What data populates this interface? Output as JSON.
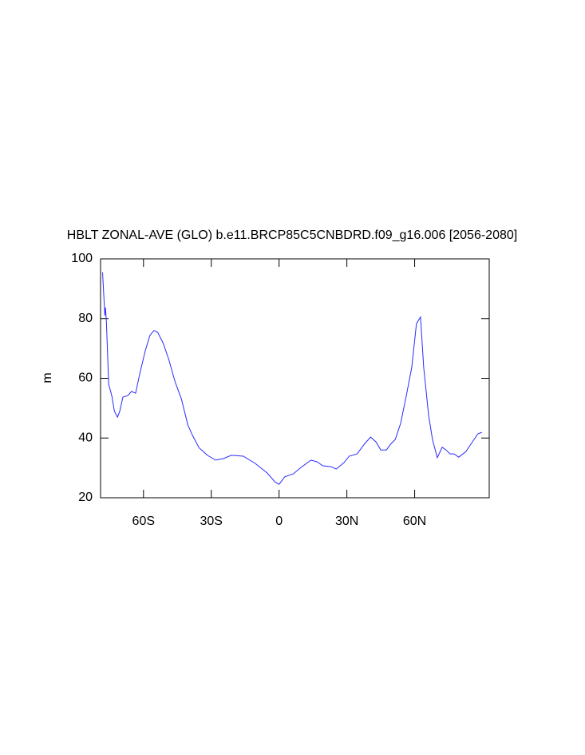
{
  "chart_data": {
    "type": "line",
    "title": "HBLT ZONAL-AVE (GLO) b.e11.BRCP85C5CNBDRD.f09_g16.006 [2056-2080]",
    "y_label": "m",
    "x": [
      -78.1,
      -77.1,
      -76.8,
      -76.4,
      -75.4,
      -74,
      -72.9,
      -71.5,
      -70.5,
      -69.1,
      -67,
      -65.3,
      -63.5,
      -61.8,
      -59.3,
      -57.2,
      -55.4,
      -53.7,
      -51.2,
      -48.8,
      -46,
      -43.2,
      -40.4,
      -38.3,
      -35.5,
      -31.7,
      -28.1,
      -24.6,
      -21.1,
      -15.8,
      -10.6,
      -5.3,
      -1.8,
      0,
      2.5,
      6.3,
      9.8,
      14.1,
      16.9,
      19.3,
      22.9,
      25.3,
      28.8,
      31,
      34.5,
      38,
      40.5,
      42.9,
      45,
      47.5,
      49.3,
      51.4,
      53.8,
      56.3,
      58.7,
      60.8,
      62.6,
      64,
      66.2,
      67.9,
      70,
      72.2,
      73.9,
      75.7,
      77.4,
      79.5,
      82.7,
      85.1,
      88,
      89.7
    ],
    "series": [
      {
        "name": "HBLT",
        "color": "#2a2aff",
        "values": [
          95.5,
          81,
          83.7,
          78.3,
          58,
          54,
          49,
          47,
          49,
          53.7,
          54.2,
          55.6,
          55,
          61,
          69,
          74.3,
          76,
          75.4,
          71.6,
          66.3,
          58.8,
          53,
          44.4,
          40.9,
          36.8,
          34.2,
          32.6,
          33.1,
          34.2,
          33.9,
          31.5,
          28.3,
          25.3,
          24.5,
          27,
          28,
          30.2,
          32.6,
          32,
          30.7,
          30.4,
          29.6,
          31.8,
          33.9,
          34.7,
          38.2,
          40.3,
          38.7,
          36,
          36,
          37.9,
          39.5,
          44.9,
          54.2,
          63.6,
          78.3,
          80.5,
          63.6,
          47.5,
          39.5,
          33.4,
          36.9,
          36,
          34.7,
          34.7,
          33.6,
          35.5,
          38.2,
          41.4,
          41.9
        ]
      }
    ],
    "xlim": [
      -79,
      93
    ],
    "xticks": [
      {
        "value": -60,
        "label": "60S"
      },
      {
        "value": -30,
        "label": "30S"
      },
      0,
      {
        "value": 30,
        "label": "30N"
      },
      {
        "value": 60,
        "label": "60N"
      }
    ],
    "ylim": [
      20,
      100
    ],
    "yticks": [
      20,
      40,
      60,
      80,
      100
    ]
  }
}
